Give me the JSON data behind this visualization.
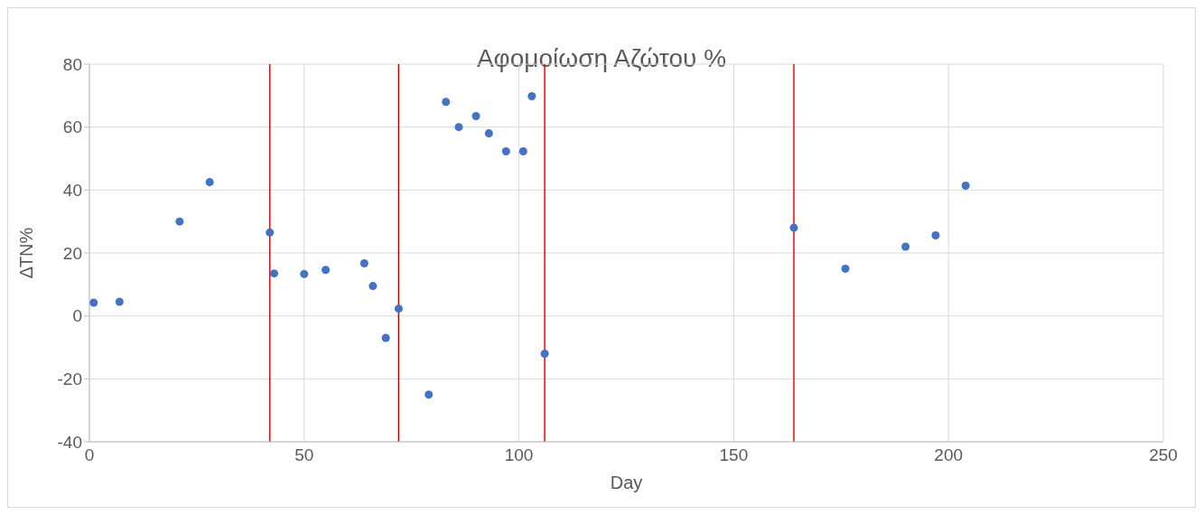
{
  "chart_data": {
    "type": "scatter",
    "title": "Αφομοίωση Αζώτου %",
    "xlabel": "Day",
    "ylabel": "ΔΤΝ%",
    "x": [
      1,
      7,
      21,
      28,
      42,
      43,
      50,
      55,
      64,
      66,
      69,
      72,
      79,
      83,
      86,
      90,
      93,
      97,
      101,
      103,
      106,
      164,
      176,
      190,
      197,
      204
    ],
    "series": [
      {
        "color": "#4472c4",
        "values": [
          4.2,
          4.5,
          30,
          42.5,
          26.5,
          13.5,
          13.3,
          14.6,
          16.7,
          9.5,
          -7,
          2.3,
          -25,
          68,
          60,
          63.5,
          58,
          52.3,
          52.3,
          69.8,
          -12,
          28,
          15,
          22,
          25.6,
          41.4
        ]
      }
    ],
    "xlim": [
      0,
      250
    ],
    "xticks": [
      0,
      50,
      100,
      150,
      200,
      250
    ],
    "ylim": [
      -40,
      80
    ],
    "yticks": [
      -40,
      -20,
      0,
      20,
      40,
      60,
      80
    ],
    "ref_lines": [
      {
        "axis": "x",
        "value": 42,
        "color": "#ff0000"
      },
      {
        "axis": "x",
        "value": 72,
        "color": "#c00000"
      },
      {
        "axis": "x",
        "value": 106,
        "color": "#ff0000"
      },
      {
        "axis": "x",
        "value": 164,
        "color": "#ff0000"
      }
    ],
    "grid": true,
    "marker": "circle"
  }
}
